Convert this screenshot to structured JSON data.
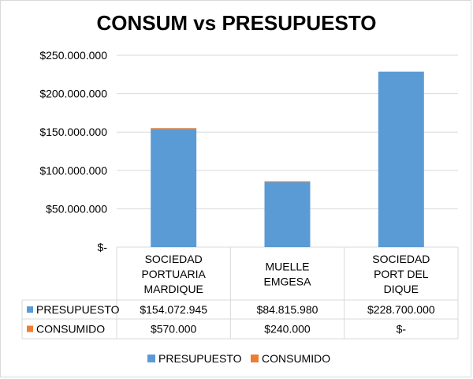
{
  "chart_data": {
    "type": "bar",
    "stacked": true,
    "title": "CONSUM vs PRESUPUESTO",
    "xlabel": "",
    "ylabel": "",
    "categories": [
      [
        "SOCIEDAD",
        "PORTUARIA",
        "MARDIQUE"
      ],
      [
        "MUELLE",
        "EMGESA"
      ],
      [
        "SOCIEDAD",
        "PORT DEL",
        "DIQUE"
      ]
    ],
    "series": [
      {
        "name": "PRESUPUESTO",
        "color": "#5b9bd5",
        "values": [
          154072945,
          84815980,
          228700000
        ],
        "labels": [
          "$154.072.945",
          "$84.815.980",
          "$228.700.000"
        ]
      },
      {
        "name": "CONSUMIDO",
        "color": "#ed7d31",
        "values": [
          570000,
          240000,
          0
        ],
        "labels": [
          "$570.000",
          "$240.000",
          "$-"
        ]
      }
    ],
    "ylim": [
      0,
      250000000
    ],
    "yticks": [
      0,
      50000000,
      100000000,
      150000000,
      200000000,
      250000000
    ],
    "ytick_labels": [
      "$-",
      "$50.000.000",
      "$100.000.000",
      "$150.000.000",
      "$200.000.000",
      "$250.000.000"
    ],
    "grid": true,
    "legend": "bottom",
    "data_table": true
  }
}
